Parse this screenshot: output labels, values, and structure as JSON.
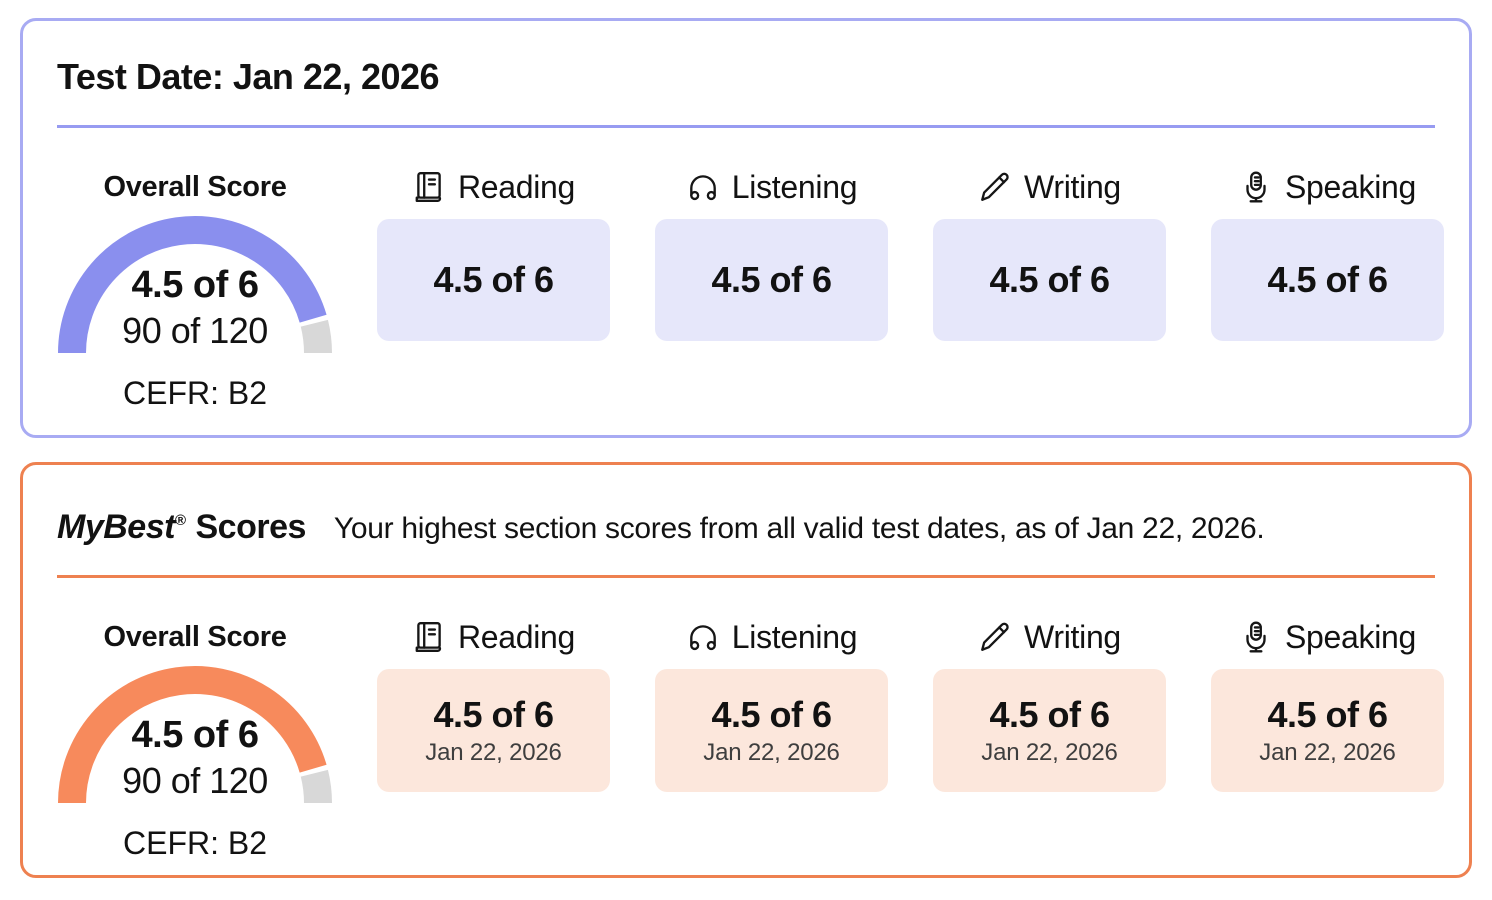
{
  "colors": {
    "purple_accent": "#8a8fee",
    "purple_divider": "#979bf1",
    "purple_border": "#a8abf3",
    "purple_box": "#e6e7fa",
    "orange_accent": "#f78a5c",
    "orange_border": "#ee8150",
    "orange_box": "#fce7dc",
    "gauge_remainder": "#d8d8d8",
    "text_main": "#121212",
    "date_text": "#3e3e3e"
  },
  "test_date_card": {
    "title": "Test Date: Jan 22, 2026",
    "overall": {
      "label": "Overall Score",
      "score": "4.5 of 6",
      "points": "90 of 120",
      "cefr": "CEFR: B2",
      "gauge_fill_percent": 91
    },
    "sections": [
      {
        "name": "Reading",
        "icon": "book-icon",
        "score": "4.5 of 6"
      },
      {
        "name": "Listening",
        "icon": "headphones-icon",
        "score": "4.5 of 6"
      },
      {
        "name": "Writing",
        "icon": "pencil-icon",
        "score": "4.5 of 6"
      },
      {
        "name": "Speaking",
        "icon": "microphone-icon",
        "score": "4.5 of 6"
      }
    ]
  },
  "mybest_card": {
    "title_brand": "MyBest",
    "title_reg": "®",
    "title_scores": "Scores",
    "subtitle": "Your highest section scores from all valid test dates, as of Jan 22, 2026.",
    "overall": {
      "label": "Overall Score",
      "score": "4.5 of 6",
      "points": "90 of 120",
      "cefr": "CEFR: B2",
      "gauge_fill_percent": 91
    },
    "sections": [
      {
        "name": "Reading",
        "icon": "book-icon",
        "score": "4.5 of 6",
        "date": "Jan 22, 2026"
      },
      {
        "name": "Listening",
        "icon": "headphones-icon",
        "score": "4.5 of 6",
        "date": "Jan 22, 2026"
      },
      {
        "name": "Writing",
        "icon": "pencil-icon",
        "score": "4.5 of 6",
        "date": "Jan 22, 2026"
      },
      {
        "name": "Speaking",
        "icon": "microphone-icon",
        "score": "4.5 of 6",
        "date": "Jan 22, 2026"
      }
    ]
  }
}
